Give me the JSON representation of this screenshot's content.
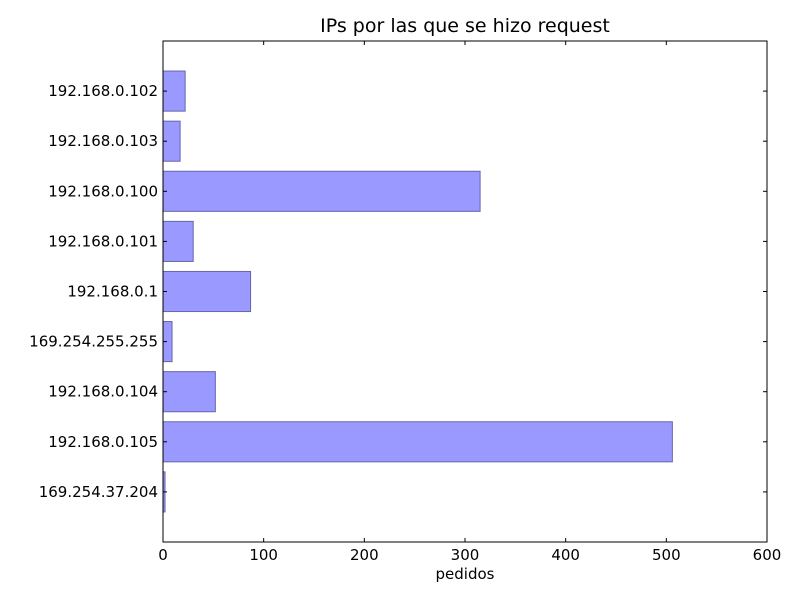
{
  "chart_data": {
    "type": "bar",
    "orientation": "horizontal",
    "title": "IPs por las que se hizo request",
    "xlabel": "pedidos",
    "ylabel": "",
    "categories": [
      "192.168.0.102",
      "192.168.0.103",
      "192.168.0.100",
      "192.168.0.101",
      "192.168.0.1",
      "169.254.255.255",
      "192.168.0.104",
      "192.168.0.105",
      "169.254.37.204"
    ],
    "values": [
      22,
      17,
      315,
      30,
      87,
      9,
      52,
      506,
      2
    ],
    "xlim": [
      0,
      600
    ],
    "xticks": [
      "0",
      "100",
      "200",
      "300",
      "400",
      "500",
      "600"
    ],
    "bar_color": "#9999ff",
    "bar_edge_color": "#6666aa",
    "grid": false,
    "legend": "none"
  }
}
